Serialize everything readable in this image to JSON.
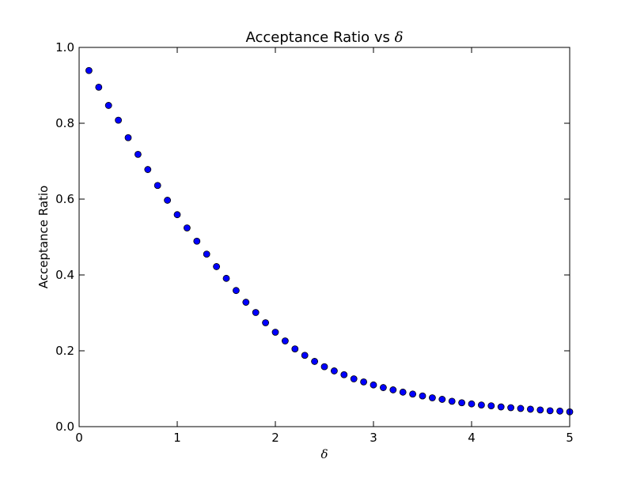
{
  "chart_data": {
    "type": "scatter",
    "title_text": "Acceptance Ratio vs ",
    "title_symbol": "δ",
    "xlabel": "δ",
    "ylabel": "Acceptance Ratio",
    "xlim": [
      0,
      5
    ],
    "ylim": [
      0,
      1.0
    ],
    "xticks": [
      0,
      1,
      2,
      3,
      4,
      5
    ],
    "xtick_labels": [
      "0",
      "1",
      "2",
      "3",
      "4",
      "5"
    ],
    "yticks": [
      0,
      0.2,
      0.4,
      0.6,
      0.8,
      1.0
    ],
    "ytick_labels": [
      "0.0",
      "0.2",
      "0.4",
      "0.6",
      "0.8",
      "1.0"
    ],
    "grid": false,
    "marker_color": "#0000ff",
    "marker_edge_color": "#000000",
    "series": [
      {
        "x": [
          0.1,
          0.2,
          0.3,
          0.4,
          0.5,
          0.6,
          0.7,
          0.8,
          0.9,
          1.0,
          1.1,
          1.2,
          1.3,
          1.4,
          1.5,
          1.6,
          1.7,
          1.8,
          1.9,
          2.0,
          2.1,
          2.2,
          2.3,
          2.4,
          2.5,
          2.6,
          2.7,
          2.8,
          2.9,
          3.0,
          3.1,
          3.2,
          3.3,
          3.4,
          3.5,
          3.6,
          3.7,
          3.8,
          3.9,
          4.0,
          4.1,
          4.2,
          4.3,
          4.4,
          4.5,
          4.6,
          4.7,
          4.8,
          4.9,
          5.0
        ],
        "y": [
          0.939,
          0.895,
          0.847,
          0.808,
          0.762,
          0.718,
          0.678,
          0.636,
          0.597,
          0.559,
          0.524,
          0.489,
          0.455,
          0.422,
          0.391,
          0.359,
          0.328,
          0.301,
          0.274,
          0.249,
          0.226,
          0.205,
          0.188,
          0.172,
          0.158,
          0.147,
          0.137,
          0.126,
          0.118,
          0.11,
          0.103,
          0.097,
          0.091,
          0.086,
          0.081,
          0.076,
          0.072,
          0.067,
          0.063,
          0.06,
          0.057,
          0.055,
          0.052,
          0.05,
          0.048,
          0.046,
          0.044,
          0.042,
          0.041,
          0.039
        ]
      }
    ]
  }
}
